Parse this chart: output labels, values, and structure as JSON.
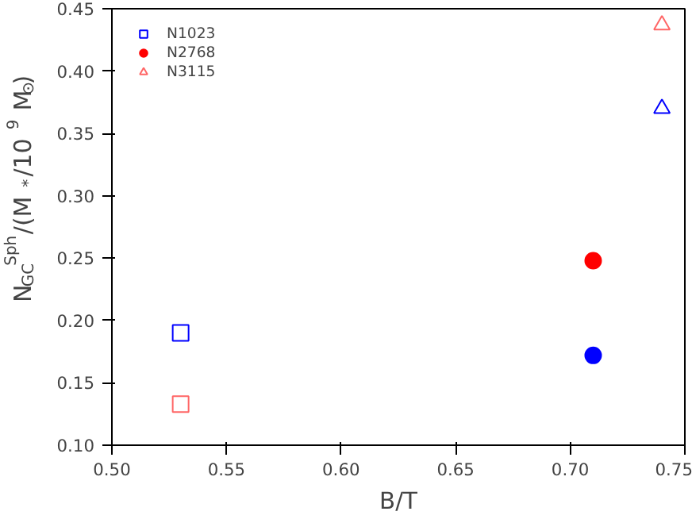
{
  "chart_data": {
    "type": "scatter",
    "xlabel": "B/T",
    "ylabel": "N$_{GC}$$^{Sph}$/(M$_{*}$/10$^{9}$ M$_{⊙}$)",
    "xlim": [
      0.5,
      0.75
    ],
    "ylim": [
      0.1,
      0.45
    ],
    "xticks": [
      {
        "value": 0.5,
        "label": "0.50"
      },
      {
        "value": 0.55,
        "label": "0.55"
      },
      {
        "value": 0.6,
        "label": "0.60"
      },
      {
        "value": 0.65,
        "label": "0.65"
      },
      {
        "value": 0.7,
        "label": "0.70"
      },
      {
        "value": 0.75,
        "label": "0.75"
      }
    ],
    "yticks": [
      {
        "value": 0.1,
        "label": "0.10"
      },
      {
        "value": 0.15,
        "label": "0.15"
      },
      {
        "value": 0.2,
        "label": "0.20"
      },
      {
        "value": 0.25,
        "label": "0.25"
      },
      {
        "value": 0.3,
        "label": "0.30"
      },
      {
        "value": 0.35,
        "label": "0.35"
      },
      {
        "value": 0.4,
        "label": "0.40"
      },
      {
        "value": 0.45,
        "label": "0.45"
      }
    ],
    "grid": false,
    "legend": "top left",
    "series": [
      {
        "name": "N1023",
        "marker": "square",
        "x": [
          0.53,
          0.53
        ],
        "values": [
          0.19,
          0.133
        ],
        "colors": [
          "#0000ff",
          "#ff6666"
        ]
      },
      {
        "name": "N2768",
        "marker": "circle",
        "x": [
          0.71,
          0.71
        ],
        "values": [
          0.248,
          0.172
        ],
        "colors": [
          "#ff0000",
          "#0000ff"
        ]
      },
      {
        "name": "N3115",
        "marker": "triangle",
        "x": [
          0.74,
          0.74
        ],
        "values": [
          0.437,
          0.37
        ],
        "colors": [
          "#ff6666",
          "#0000ff"
        ]
      }
    ]
  }
}
